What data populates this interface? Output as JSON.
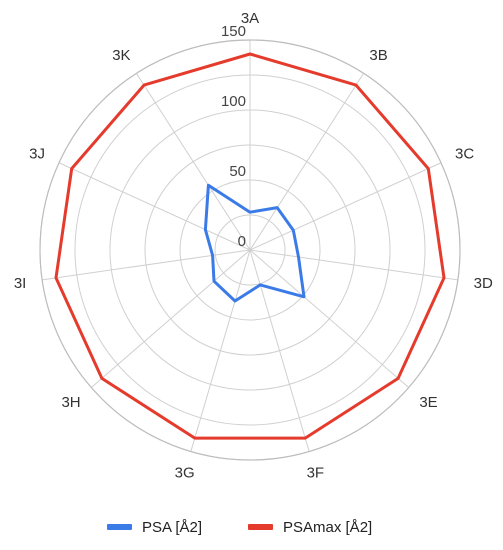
{
  "chart_data": {
    "type": "radar",
    "categories": [
      "3A",
      "3B",
      "3C",
      "3D",
      "3E",
      "3F",
      "3G",
      "3H",
      "3I",
      "3J",
      "3K"
    ],
    "series": [
      {
        "name": "PSA [Å2]",
        "color": "#3b7be8",
        "values": [
          27,
          36,
          34,
          35,
          51,
          26,
          38,
          34,
          27,
          35,
          55
        ]
      },
      {
        "name": "PSAmax [Å2]",
        "color": "#e53b2c",
        "values": [
          140,
          140,
          140,
          140,
          140,
          140,
          140,
          140,
          140,
          140,
          140
        ]
      }
    ],
    "radial_ticks": [
      "0",
      "50",
      "100",
      "150"
    ],
    "rlim": [
      0,
      150
    ],
    "grid": true,
    "legend_position": "bottom"
  }
}
